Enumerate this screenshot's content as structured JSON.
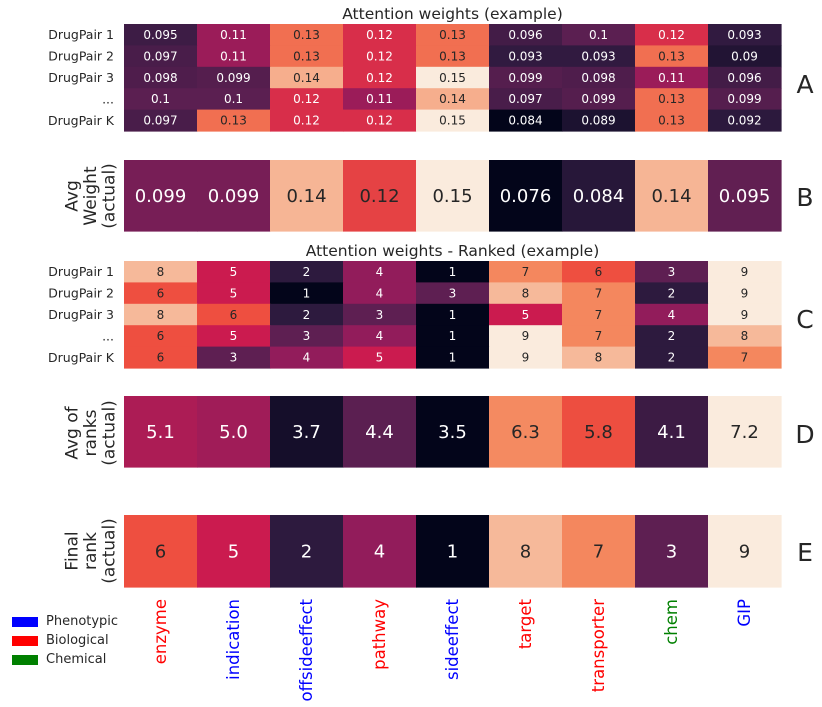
{
  "chart_data": [
    {
      "panel": "A",
      "type": "heatmap",
      "title": "Attention weights (example)",
      "ylabel": "",
      "rows": [
        "DrugPair 1",
        "DrugPair 2",
        "DrugPair 3",
        "...",
        "DrugPair K"
      ],
      "columns": [
        "enzyme",
        "indication",
        "offsideeffect",
        "pathway",
        "sideeffect",
        "target",
        "transporter",
        "chem",
        "GIP"
      ],
      "values": [
        [
          0.095,
          0.11,
          0.13,
          0.12,
          0.13,
          0.096,
          0.1,
          0.12,
          0.093
        ],
        [
          0.097,
          0.11,
          0.13,
          0.12,
          0.13,
          0.093,
          0.093,
          0.13,
          0.09
        ],
        [
          0.098,
          0.099,
          0.14,
          0.12,
          0.15,
          0.099,
          0.098,
          0.11,
          0.096
        ],
        [
          0.1,
          0.1,
          0.12,
          0.11,
          0.14,
          0.097,
          0.099,
          0.13,
          0.099
        ],
        [
          0.097,
          0.13,
          0.12,
          0.12,
          0.15,
          0.084,
          0.089,
          0.13,
          0.092
        ]
      ],
      "labels": [
        [
          "0.095",
          "0.11",
          "0.13",
          "0.12",
          "0.13",
          "0.096",
          "0.1",
          "0.12",
          "0.093"
        ],
        [
          "0.097",
          "0.11",
          "0.13",
          "0.12",
          "0.13",
          "0.093",
          "0.093",
          "0.13",
          "0.09"
        ],
        [
          "0.098",
          "0.099",
          "0.14",
          "0.12",
          "0.15",
          "0.099",
          "0.098",
          "0.11",
          "0.096"
        ],
        [
          "0.1",
          "0.1",
          "0.12",
          "0.11",
          "0.14",
          "0.097",
          "0.099",
          "0.13",
          "0.099"
        ],
        [
          "0.097",
          "0.13",
          "0.12",
          "0.12",
          "0.15",
          "0.084",
          "0.089",
          "0.13",
          "0.092"
        ]
      ]
    },
    {
      "panel": "B",
      "type": "heatmap",
      "title": "",
      "ylabel": [
        "Avg",
        "Weight",
        "(actual)"
      ],
      "rows": [
        ""
      ],
      "columns": [
        "enzyme",
        "indication",
        "offsideeffect",
        "pathway",
        "sideeffect",
        "target",
        "transporter",
        "chem",
        "GIP"
      ],
      "values": [
        [
          0.099,
          0.099,
          0.14,
          0.12,
          0.15,
          0.076,
          0.084,
          0.14,
          0.095
        ]
      ],
      "labels": [
        [
          "0.099",
          "0.099",
          "0.14",
          "0.12",
          "0.15",
          "0.076",
          "0.084",
          "0.14",
          "0.095"
        ]
      ]
    },
    {
      "panel": "C",
      "type": "heatmap",
      "title": "Attention weights - Ranked (example)",
      "ylabel": "",
      "rows": [
        "DrugPair 1",
        "DrugPair 2",
        "DrugPair 3",
        "...",
        "DrugPair K"
      ],
      "columns": [
        "enzyme",
        "indication",
        "offsideeffect",
        "pathway",
        "sideeffect",
        "target",
        "transporter",
        "chem",
        "GIP"
      ],
      "values": [
        [
          8,
          5,
          2,
          4,
          1,
          7,
          6,
          3,
          9
        ],
        [
          6,
          5,
          1,
          4,
          3,
          8,
          7,
          2,
          9
        ],
        [
          8,
          6,
          2,
          3,
          1,
          5,
          7,
          4,
          9
        ],
        [
          6,
          5,
          3,
          4,
          1,
          9,
          7,
          2,
          8
        ],
        [
          6,
          3,
          4,
          5,
          1,
          9,
          8,
          2,
          7
        ]
      ],
      "labels": [
        [
          "8",
          "5",
          "2",
          "4",
          "1",
          "7",
          "6",
          "3",
          "9"
        ],
        [
          "6",
          "5",
          "1",
          "4",
          "3",
          "8",
          "7",
          "2",
          "9"
        ],
        [
          "8",
          "6",
          "2",
          "3",
          "1",
          "5",
          "7",
          "4",
          "9"
        ],
        [
          "6",
          "5",
          "3",
          "4",
          "1",
          "9",
          "7",
          "2",
          "8"
        ],
        [
          "6",
          "3",
          "4",
          "5",
          "1",
          "9",
          "8",
          "2",
          "7"
        ]
      ]
    },
    {
      "panel": "D",
      "type": "heatmap",
      "title": "",
      "ylabel": [
        "Avg of",
        "ranks",
        "(actual)"
      ],
      "rows": [
        ""
      ],
      "columns": [
        "enzyme",
        "indication",
        "offsideeffect",
        "pathway",
        "sideeffect",
        "target",
        "transporter",
        "chem",
        "GIP"
      ],
      "values": [
        [
          5.1,
          5.0,
          3.7,
          4.4,
          3.5,
          6.3,
          5.8,
          4.1,
          7.2
        ]
      ],
      "labels": [
        [
          "5.1",
          "5.0",
          "3.7",
          "4.4",
          "3.5",
          "6.3",
          "5.8",
          "4.1",
          "7.2"
        ]
      ]
    },
    {
      "panel": "E",
      "type": "heatmap",
      "title": "",
      "ylabel": [
        "Final",
        "rank",
        "(actual)"
      ],
      "rows": [
        ""
      ],
      "columns": [
        "enzyme",
        "indication",
        "offsideeffect",
        "pathway",
        "sideeffect",
        "target",
        "transporter",
        "chem",
        "GIP"
      ],
      "values": [
        [
          6,
          5,
          2,
          4,
          1,
          8,
          7,
          3,
          9
        ]
      ],
      "labels": [
        [
          "6",
          "5",
          "2",
          "4",
          "1",
          "8",
          "7",
          "3",
          "9"
        ]
      ]
    }
  ],
  "x_axis": {
    "labels": [
      "enzyme",
      "indication",
      "offsideeffect",
      "pathway",
      "sideeffect",
      "target",
      "transporter",
      "chem",
      "GIP"
    ],
    "categories": [
      "Biological",
      "Phenotypic",
      "Phenotypic",
      "Biological",
      "Phenotypic",
      "Biological",
      "Biological",
      "Chemical",
      "Phenotypic"
    ]
  },
  "category_colors": {
    "Phenotypic": "#0000ff",
    "Biological": "#ff0000",
    "Chemical": "#008000"
  },
  "legend": {
    "items": [
      {
        "label": "Phenotypic",
        "color": "#0000ff"
      },
      {
        "label": "Biological",
        "color": "#ff0000"
      },
      {
        "label": "Chemical",
        "color": "#008000"
      }
    ]
  },
  "colormap": [
    "#03051a",
    "#2d1a3e",
    "#5e1f52",
    "#921c5b",
    "#cb1b4f",
    "#ee4f40",
    "#f4875e",
    "#f6b99a",
    "#faebdd"
  ]
}
